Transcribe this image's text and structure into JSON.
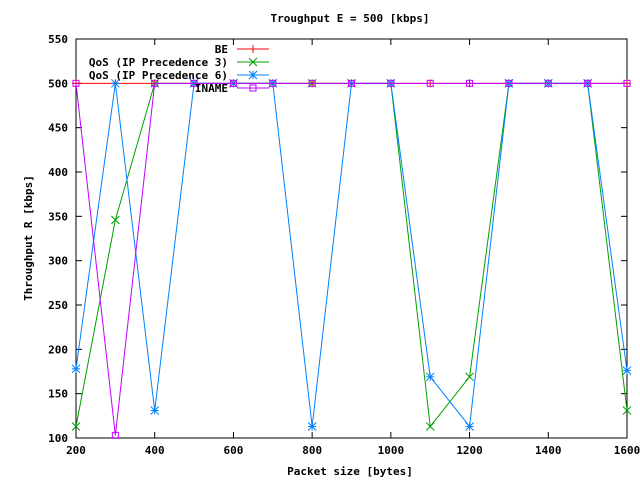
{
  "chart_data": {
    "type": "line",
    "title": "Troughput E = 500 [kbps]",
    "xlabel": "Packet size [bytes]",
    "ylabel": "Throughput R [kbps]",
    "xlim": [
      200,
      1600
    ],
    "ylim": [
      100,
      550
    ],
    "xticks": [
      200,
      400,
      600,
      800,
      1000,
      1200,
      1400,
      1600
    ],
    "yticks": [
      100,
      150,
      200,
      250,
      300,
      350,
      400,
      450,
      500,
      550
    ],
    "grid": false,
    "legend_position": "top-right",
    "x": [
      200,
      300,
      400,
      500,
      600,
      700,
      800,
      900,
      1000,
      1100,
      1200,
      1300,
      1400,
      1500,
      1600
    ],
    "series": [
      {
        "name": "BE",
        "color": "#ff0000",
        "marker": "plus",
        "values": [
          500,
          500,
          500,
          500,
          500,
          500,
          500,
          500,
          500,
          500,
          500,
          500,
          500,
          500,
          500
        ]
      },
      {
        "name": "QoS (IP Precedence 3)",
        "color": "#00a000",
        "marker": "cross",
        "values": [
          113,
          346,
          500,
          500,
          500,
          500,
          500,
          500,
          500,
          113,
          169,
          500,
          500,
          500,
          131
        ]
      },
      {
        "name": "QoS (IP Precedence 6)",
        "color": "#0080ff",
        "marker": "star",
        "values": [
          178,
          500,
          131,
          500,
          500,
          500,
          113,
          500,
          500,
          169,
          113,
          500,
          500,
          500,
          176
        ]
      },
      {
        "name": "INAME",
        "color": "#c000ff",
        "marker": "square",
        "values": [
          500,
          103,
          500,
          500,
          500,
          500,
          500,
          500,
          500,
          500,
          500,
          500,
          500,
          500,
          500
        ]
      }
    ]
  }
}
